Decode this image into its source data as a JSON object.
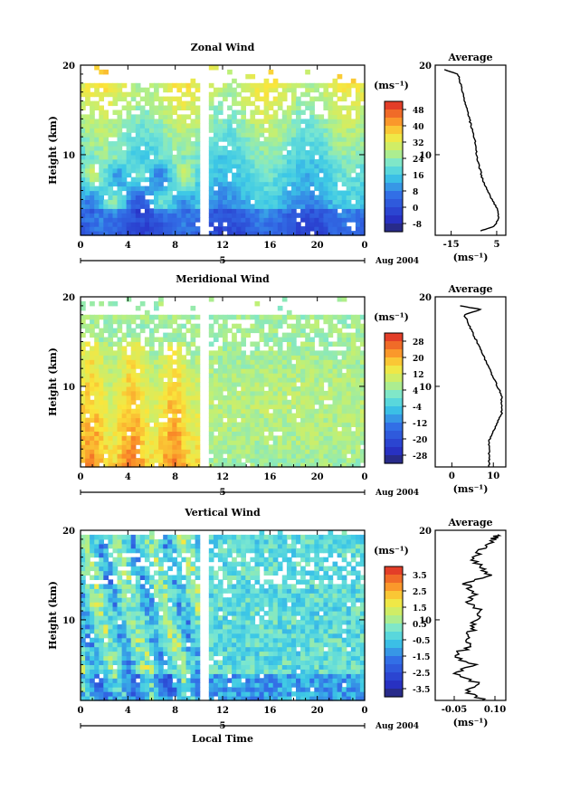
{
  "chart_data": [
    {
      "type": "heatmap",
      "title": "Zonal Wind",
      "ylabel": "Height (km)",
      "xlabel": "",
      "x_ticks": [
        "0",
        "4",
        "8",
        "12",
        "16",
        "20",
        "0"
      ],
      "y_ticks": [
        "10",
        "20"
      ],
      "xlim": [
        0,
        24
      ],
      "ylim": [
        1,
        20
      ],
      "date_marker": "5",
      "date_label": "Aug 2004",
      "colorbar_unit": "(ms⁻¹)",
      "colorbar_ticks": [
        "48",
        "40",
        "32",
        "24",
        "16",
        "8",
        "0",
        "-8"
      ],
      "colorbar_range": [
        -12,
        52
      ],
      "data_gap_hours": [
        10.2,
        10.9
      ],
      "average": {
        "title": "Average",
        "x_ticks": [
          "-15",
          "5"
        ],
        "xlabel": "(ms⁻¹)",
        "xlim": [
          -22,
          9
        ],
        "y_ticks": [
          "10",
          "20"
        ],
        "profile_height_km": [
          1.5,
          2,
          3,
          4,
          5,
          6,
          7,
          8,
          9,
          10,
          11,
          12,
          13,
          14,
          15,
          16,
          17,
          18,
          19,
          19.5
        ],
        "profile_value": [
          -2,
          4,
          6,
          5,
          3,
          1,
          -1,
          -2,
          -3,
          -4,
          -4,
          -5,
          -6,
          -7,
          -8,
          -9,
          -10,
          -11,
          -12,
          -18
        ]
      }
    },
    {
      "type": "heatmap",
      "title": "Meridional Wind",
      "ylabel": "Height (km)",
      "xlabel": "",
      "x_ticks": [
        "0",
        "4",
        "8",
        "12",
        "16",
        "20",
        "0"
      ],
      "y_ticks": [
        "10",
        "20"
      ],
      "xlim": [
        0,
        24
      ],
      "ylim": [
        1,
        20
      ],
      "date_marker": "5",
      "date_label": "Aug 2004",
      "colorbar_unit": "(ms⁻¹)",
      "colorbar_ticks": [
        "28",
        "20",
        "12",
        "4",
        "-4",
        "-12",
        "-20",
        "-28"
      ],
      "colorbar_range": [
        -32,
        32
      ],
      "data_gap_hours": [
        10.2,
        10.9
      ],
      "average": {
        "title": "Average",
        "x_ticks": [
          "0",
          "10"
        ],
        "xlabel": "(ms⁻¹)",
        "xlim": [
          -4,
          13
        ],
        "y_ticks": [
          "10",
          "20"
        ],
        "profile_height_km": [
          1,
          2,
          3,
          4,
          5,
          6,
          7,
          8,
          9,
          10,
          11,
          12,
          13,
          14,
          15,
          16,
          17,
          18,
          18.6,
          19
        ],
        "profile_value": [
          9,
          9,
          9,
          9,
          10,
          11,
          12,
          12,
          12,
          11,
          10,
          9,
          8,
          7,
          6,
          5,
          4,
          3,
          7,
          2
        ]
      }
    },
    {
      "type": "heatmap",
      "title": "Vertical Wind",
      "ylabel": "Height (km)",
      "xlabel": "Local Time",
      "x_ticks": [
        "0",
        "4",
        "8",
        "12",
        "16",
        "20",
        "0"
      ],
      "y_ticks": [
        "10",
        "20"
      ],
      "xlim": [
        0,
        24
      ],
      "ylim": [
        1,
        20
      ],
      "date_marker": "5",
      "date_label": "Aug 2004",
      "colorbar_unit": "(ms⁻¹)",
      "colorbar_ticks": [
        "3.5",
        "2.5",
        "1.5",
        "0.5",
        "-0.5",
        "-1.5",
        "-2.5",
        "-3.5"
      ],
      "colorbar_range": [
        -4,
        4
      ],
      "data_gap_hours": [
        10.2,
        10.9
      ],
      "average": {
        "title": "Average",
        "x_ticks": [
          "-0.05",
          "0.10"
        ],
        "xlabel": "(ms⁻¹)",
        "xlim": [
          -0.12,
          0.14
        ],
        "y_ticks": [
          "10",
          "20"
        ],
        "profile_height_km": [
          1,
          2,
          3,
          4,
          5,
          6,
          7,
          8,
          9,
          10,
          11,
          12,
          13,
          14,
          15,
          16,
          17,
          18,
          19,
          19.5
        ],
        "profile_value": [
          0.06,
          0.0,
          0.03,
          -0.05,
          0.02,
          -0.06,
          0.01,
          0.0,
          0.02,
          0.03,
          0.05,
          0.0,
          0.03,
          -0.01,
          0.08,
          0.04,
          0.02,
          0.06,
          0.09,
          0.11
        ]
      }
    }
  ]
}
